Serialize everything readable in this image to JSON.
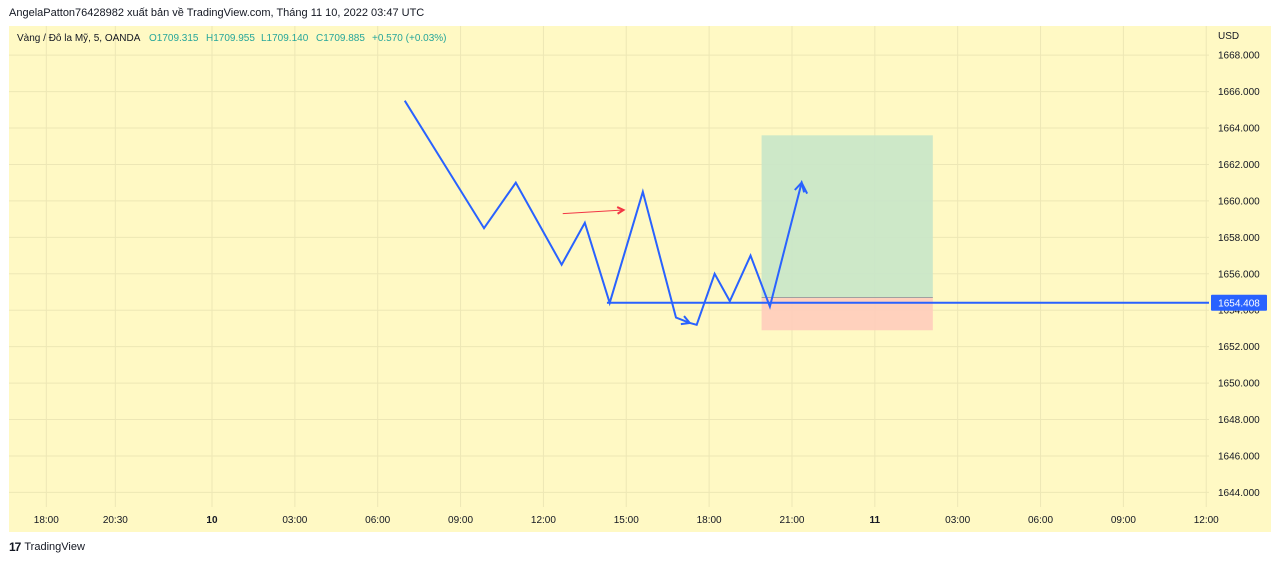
{
  "header": {
    "published_text": "AngelaPatton76428982 xuất bản về TradingView.com, Tháng 11 10, 2022 03:47 UTC"
  },
  "footer": {
    "logo_mark": "17",
    "brand": "TradingView"
  },
  "legend": {
    "symbol": "Vàng / Đô la Mỹ, 5, OANDA",
    "open": "O1709.315",
    "high": "H1709.955",
    "low": "L1709.140",
    "close": "C1709.885",
    "change": "+0.570 (+0.03%)"
  },
  "colors": {
    "background": "#fff9c4",
    "grid": "#ede7b5",
    "line": "#2962ff",
    "accent_green": "#26a69a",
    "arrow_red": "#f23645",
    "profit_zone": "#c8e6c9",
    "loss_zone": "#ffccbc"
  },
  "chart_data": {
    "type": "line",
    "currency": "USD",
    "ylim": [
      1643.2,
      1669.6
    ],
    "y_ticks": [
      "1644.000",
      "1646.000",
      "1648.000",
      "1650.000",
      "1652.000",
      "1654.000",
      "1656.000",
      "1658.000",
      "1660.000",
      "1662.000",
      "1664.000",
      "1666.000",
      "1668.000"
    ],
    "x_ticks": [
      {
        "label": "18:00",
        "t": 0,
        "bold": false
      },
      {
        "label": "20:30",
        "t": 2.5,
        "bold": false
      },
      {
        "label": "10",
        "t": 6,
        "bold": true
      },
      {
        "label": "03:00",
        "t": 9,
        "bold": false
      },
      {
        "label": "06:00",
        "t": 12,
        "bold": false
      },
      {
        "label": "09:00",
        "t": 15,
        "bold": false
      },
      {
        "label": "12:00",
        "t": 18,
        "bold": false
      },
      {
        "label": "15:00",
        "t": 21,
        "bold": false
      },
      {
        "label": "18:00",
        "t": 24,
        "bold": false
      },
      {
        "label": "21:00",
        "t": 27,
        "bold": false
      },
      {
        "label": "11",
        "t": 30,
        "bold": true
      },
      {
        "label": "03:00",
        "t": 33,
        "bold": false
      },
      {
        "label": "06:00",
        "t": 36,
        "bold": false
      },
      {
        "label": "09:00",
        "t": 39,
        "bold": false
      },
      {
        "label": "12:00",
        "t": 42,
        "bold": false
      }
    ],
    "series": [
      {
        "points": [
          {
            "t": 12.98,
            "y": 1665.5
          },
          {
            "t": 15.85,
            "y": 1658.5
          },
          {
            "t": 17.0,
            "y": 1661.0
          },
          {
            "t": 18.66,
            "y": 1656.5
          },
          {
            "t": 19.5,
            "y": 1658.8
          },
          {
            "t": 20.4,
            "y": 1654.4
          },
          {
            "t": 21.6,
            "y": 1660.5
          },
          {
            "t": 22.8,
            "y": 1653.6
          },
          {
            "t": 23.3,
            "y": 1653.3
          },
          {
            "t": 23.55,
            "y": 1653.2
          },
          {
            "t": 24.2,
            "y": 1656.0
          },
          {
            "t": 24.75,
            "y": 1654.5
          },
          {
            "t": 25.5,
            "y": 1657.0
          },
          {
            "t": 26.2,
            "y": 1654.2
          },
          {
            "t": 27.35,
            "y": 1661.0
          },
          {
            "t": 27.55,
            "y": 1660.4
          }
        ]
      }
    ],
    "horizontal_line": {
      "t_start": 20.3,
      "price": 1654.408,
      "label": "1654.408"
    },
    "position_box": {
      "t_start": 25.9,
      "t_end": 32.1,
      "entry": 1654.7,
      "target": 1663.6,
      "stop": 1652.9
    },
    "red_arrow": {
      "t_start": 18.7,
      "t_end": 20.9,
      "y_start": 1659.3,
      "y_end": 1659.5
    }
  }
}
